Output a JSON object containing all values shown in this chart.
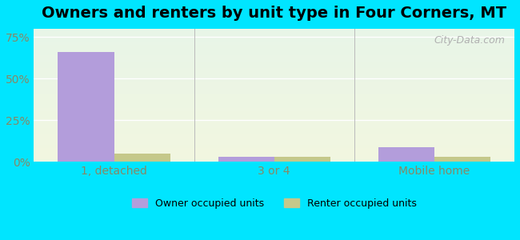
{
  "title": "Owners and renters by unit type in Four Corners, MT",
  "categories": [
    "1, detached",
    "3 or 4",
    "Mobile home"
  ],
  "owner_values": [
    66,
    3,
    9
  ],
  "renter_values": [
    5,
    3,
    3
  ],
  "owner_color": "#b39ddb",
  "renter_color": "#c5c88a",
  "background_outer": "#00e5ff",
  "yticks": [
    0,
    25,
    50,
    75
  ],
  "ylim": [
    0,
    80
  ],
  "bar_width": 0.35,
  "legend_owner": "Owner occupied units",
  "legend_renter": "Renter occupied units",
  "watermark": "City-Data.com",
  "title_fontsize": 14,
  "tick_color": "#888866",
  "grid_color": "#ffffff",
  "separator_color": "#bbbbbb"
}
